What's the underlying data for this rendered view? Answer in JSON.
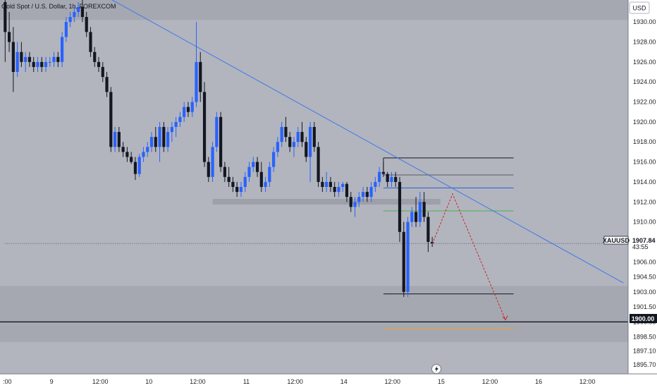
{
  "header": {
    "title": "Gold Spot / U.S. Dollar, 1h, FOREXCOM"
  },
  "currency_button": {
    "label": "USD"
  },
  "price_tag": {
    "symbol": "XAUUSD",
    "price": "1907.84",
    "countdown": "43:55"
  },
  "level_tag": {
    "label": "1900.00"
  },
  "icons": {
    "lightning": "lightning-icon"
  },
  "colors": {
    "background": "#b2b5be",
    "band": "#a5a8b1",
    "plot_border": "#ffffff",
    "up": "#2962ff",
    "down": "#131722",
    "trendline": "#3d7ae8",
    "projection": "#c62828",
    "support_green": "#4caf50",
    "orange_line": "#f0a030",
    "resistance_blue": "#2a5bd7",
    "level_line": "#000000"
  },
  "chart_data": {
    "type": "candlestick",
    "title": "Gold Spot / U.S. Dollar, 1h, FOREXCOM",
    "currency": "USD",
    "ylim": [
      1894.8,
      1932.2
    ],
    "yticks": [
      "1930.00",
      "1928.00",
      "1926.00",
      "1924.00",
      "1922.00",
      "1920.00",
      "1918.00",
      "1916.00",
      "1914.00",
      "1912.00",
      "1910.00",
      "1908.00",
      "1906.00",
      "1904.50",
      "1903.00",
      "1901.50",
      "1900.00",
      "1898.50",
      "1897.10",
      "1895.70"
    ],
    "xticks": [
      ":00",
      "9",
      "12:00",
      "10",
      "12:00",
      "11",
      "12:00",
      "14",
      "12:00",
      "15",
      "12:00",
      "16",
      "12:00"
    ],
    "candles": [
      [
        1932.0,
        1932.5,
        1926.0,
        1929.0
      ],
      [
        1929.0,
        1931.0,
        1927.0,
        1928.0
      ],
      [
        1928.0,
        1929.5,
        1923.0,
        1925.0
      ],
      [
        1925.0,
        1928.0,
        1924.5,
        1927.0
      ],
      [
        1927.0,
        1928.0,
        1925.5,
        1926.0
      ],
      [
        1926.0,
        1927.0,
        1925.0,
        1926.5
      ],
      [
        1926.5,
        1927.0,
        1925.5,
        1926.0
      ],
      [
        1926.0,
        1926.5,
        1925.0,
        1925.5
      ],
      [
        1925.5,
        1926.5,
        1925.0,
        1926.0
      ],
      [
        1926.0,
        1926.5,
        1925.0,
        1925.5
      ],
      [
        1925.5,
        1926.5,
        1925.0,
        1926.0
      ],
      [
        1926.0,
        1926.5,
        1925.5,
        1926.0
      ],
      [
        1926.0,
        1927.0,
        1925.5,
        1926.5
      ],
      [
        1926.5,
        1927.0,
        1925.5,
        1926.0
      ],
      [
        1926.0,
        1929.0,
        1925.5,
        1928.5
      ],
      [
        1928.5,
        1930.5,
        1928.0,
        1930.0
      ],
      [
        1930.0,
        1931.0,
        1929.5,
        1930.5
      ],
      [
        1930.5,
        1931.5,
        1930.0,
        1931.0
      ],
      [
        1931.0,
        1932.0,
        1930.5,
        1931.5
      ],
      [
        1931.5,
        1932.5,
        1930.0,
        1930.5
      ],
      [
        1930.5,
        1931.0,
        1928.5,
        1929.0
      ],
      [
        1929.0,
        1929.5,
        1926.5,
        1927.0
      ],
      [
        1927.0,
        1927.5,
        1925.5,
        1926.0
      ],
      [
        1926.0,
        1926.5,
        1925.0,
        1925.5
      ],
      [
        1925.5,
        1926.0,
        1924.0,
        1924.5
      ],
      [
        1924.5,
        1925.0,
        1922.5,
        1923.0
      ],
      [
        1923.0,
        1923.5,
        1917.0,
        1917.5
      ],
      [
        1917.5,
        1919.5,
        1917.0,
        1919.0
      ],
      [
        1919.0,
        1919.5,
        1917.0,
        1917.5
      ],
      [
        1917.5,
        1918.0,
        1916.5,
        1917.0
      ],
      [
        1917.0,
        1917.5,
        1916.0,
        1916.5
      ],
      [
        1916.5,
        1917.0,
        1915.8,
        1916.0
      ],
      [
        1916.0,
        1916.5,
        1914.2,
        1914.8
      ],
      [
        1914.8,
        1916.8,
        1914.5,
        1916.5
      ],
      [
        1916.5,
        1917.5,
        1916.0,
        1917.0
      ],
      [
        1917.0,
        1918.0,
        1916.5,
        1917.5
      ],
      [
        1917.5,
        1919.0,
        1917.0,
        1918.5
      ],
      [
        1918.5,
        1919.5,
        1917.0,
        1917.5
      ],
      [
        1917.5,
        1920.0,
        1916.0,
        1919.5
      ],
      [
        1919.5,
        1920.0,
        1917.0,
        1917.5
      ],
      [
        1917.5,
        1919.5,
        1917.0,
        1919.0
      ],
      [
        1919.0,
        1920.0,
        1918.0,
        1919.5
      ],
      [
        1919.5,
        1920.5,
        1918.5,
        1920.0
      ],
      [
        1920.0,
        1921.0,
        1919.5,
        1920.5
      ],
      [
        1920.5,
        1922.0,
        1920.0,
        1921.5
      ],
      [
        1921.5,
        1922.0,
        1920.5,
        1921.0
      ],
      [
        1921.0,
        1922.5,
        1920.5,
        1922.0
      ],
      [
        1922.0,
        1930.0,
        1921.5,
        1926.0
      ],
      [
        1926.0,
        1927.0,
        1922.0,
        1923.0
      ],
      [
        1923.0,
        1924.0,
        1915.5,
        1916.0
      ],
      [
        1916.0,
        1916.5,
        1914.0,
        1914.5
      ],
      [
        1914.5,
        1918.0,
        1914.0,
        1917.5
      ],
      [
        1917.5,
        1921.0,
        1917.0,
        1920.5
      ],
      [
        1920.5,
        1921.0,
        1915.0,
        1915.5
      ],
      [
        1915.5,
        1916.0,
        1914.0,
        1914.5
      ],
      [
        1914.5,
        1915.5,
        1913.5,
        1914.0
      ],
      [
        1914.0,
        1914.5,
        1913.0,
        1913.5
      ],
      [
        1913.5,
        1914.0,
        1912.5,
        1913.0
      ],
      [
        1913.0,
        1914.0,
        1912.5,
        1913.5
      ],
      [
        1913.5,
        1915.0,
        1913.0,
        1914.5
      ],
      [
        1914.5,
        1916.0,
        1914.0,
        1915.5
      ],
      [
        1915.5,
        1916.5,
        1915.0,
        1916.0
      ],
      [
        1916.0,
        1916.5,
        1914.5,
        1915.0
      ],
      [
        1915.0,
        1916.0,
        1913.0,
        1913.5
      ],
      [
        1913.5,
        1914.5,
        1913.0,
        1914.0
      ],
      [
        1914.0,
        1916.0,
        1913.5,
        1915.5
      ],
      [
        1915.5,
        1917.5,
        1915.0,
        1917.0
      ],
      [
        1917.0,
        1918.5,
        1916.5,
        1918.0
      ],
      [
        1918.0,
        1920.0,
        1917.5,
        1919.5
      ],
      [
        1919.5,
        1920.5,
        1918.0,
        1918.5
      ],
      [
        1918.5,
        1919.0,
        1917.0,
        1917.5
      ],
      [
        1917.5,
        1918.5,
        1916.5,
        1918.0
      ],
      [
        1918.0,
        1919.5,
        1917.5,
        1919.0
      ],
      [
        1919.0,
        1920.0,
        1917.5,
        1918.0
      ],
      [
        1918.0,
        1918.5,
        1916.0,
        1916.5
      ],
      [
        1916.5,
        1920.0,
        1914.0,
        1919.5
      ],
      [
        1919.5,
        1920.0,
        1917.0,
        1917.5
      ],
      [
        1917.5,
        1918.0,
        1913.5,
        1914.0
      ],
      [
        1914.0,
        1914.5,
        1913.0,
        1913.5
      ],
      [
        1913.5,
        1915.0,
        1913.0,
        1914.0
      ],
      [
        1914.0,
        1914.5,
        1913.0,
        1913.5
      ],
      [
        1913.5,
        1914.0,
        1912.5,
        1913.0
      ],
      [
        1913.0,
        1914.0,
        1912.5,
        1913.5
      ],
      [
        1913.5,
        1914.0,
        1913.0,
        1913.8
      ],
      [
        1913.8,
        1914.0,
        1912.0,
        1912.5
      ],
      [
        1912.5,
        1913.0,
        1911.0,
        1911.5
      ],
      [
        1911.5,
        1912.5,
        1910.5,
        1912.0
      ],
      [
        1912.0,
        1913.0,
        1911.5,
        1912.5
      ],
      [
        1912.5,
        1913.5,
        1912.0,
        1913.0
      ],
      [
        1913.0,
        1913.5,
        1912.0,
        1912.5
      ],
      [
        1912.5,
        1914.0,
        1912.0,
        1913.5
      ],
      [
        1913.5,
        1914.5,
        1913.0,
        1914.0
      ],
      [
        1914.0,
        1915.5,
        1913.5,
        1915.0
      ],
      [
        1915.0,
        1916.0,
        1914.5,
        1914.8
      ],
      [
        1914.8,
        1915.0,
        1913.5,
        1914.0
      ],
      [
        1914.0,
        1915.0,
        1913.5,
        1914.5
      ],
      [
        1914.5,
        1915.0,
        1913.5,
        1914.0
      ],
      [
        1914.0,
        1914.5,
        1908.0,
        1909.0
      ],
      [
        1909.0,
        1910.0,
        1902.5,
        1903.0
      ],
      [
        1903.0,
        1910.5,
        1902.5,
        1910.0
      ],
      [
        1910.0,
        1911.5,
        1909.5,
        1911.0
      ],
      [
        1911.0,
        1912.5,
        1909.5,
        1910.0
      ],
      [
        1910.0,
        1913.0,
        1909.5,
        1912.0
      ],
      [
        1912.0,
        1913.0,
        1910.0,
        1910.5
      ],
      [
        1910.5,
        1911.0,
        1907.0,
        1908.0
      ],
      [
        1908.0,
        1908.5,
        1907.5,
        1907.84
      ]
    ],
    "zones": [
      {
        "kind": "band",
        "from": 1932.2,
        "to": 1930.2
      },
      {
        "kind": "band",
        "from": 1903.6,
        "to": 1898.0
      },
      {
        "kind": "box",
        "from": 1912.3,
        "to": 1911.8,
        "start": 51,
        "end": 107
      }
    ],
    "levels": [
      {
        "name": "box-top",
        "price": 1916.4,
        "start": 93,
        "end": 125,
        "color": "black"
      },
      {
        "name": "resistance-a",
        "price": 1914.7,
        "start": 93,
        "end": 125,
        "color": "gray"
      },
      {
        "name": "resistance-b",
        "price": 1913.4,
        "start": 93,
        "end": 125,
        "color": "blue"
      },
      {
        "name": "support-green",
        "price": 1911.1,
        "start": 93,
        "end": 125,
        "color": "green"
      },
      {
        "name": "box-bottom",
        "price": 1902.8,
        "start": 93,
        "end": 125,
        "color": "black"
      },
      {
        "name": "current-price",
        "price": 1907.84,
        "start": 0,
        "end": 152,
        "color": "dotted"
      },
      {
        "name": "psych-level",
        "price": 1900.0,
        "start": 0,
        "end": 152,
        "color": "black"
      },
      {
        "name": "orange-line",
        "price": 1899.3,
        "start": 93,
        "end": 125,
        "color": "orange"
      }
    ],
    "trendline": {
      "from": [
        25,
        1932.5
      ],
      "to": [
        152,
        1903.9
      ]
    },
    "projection": [
      [
        105,
        1907.8
      ],
      [
        110,
        1912.8
      ],
      [
        123,
        1900.2
      ]
    ]
  }
}
